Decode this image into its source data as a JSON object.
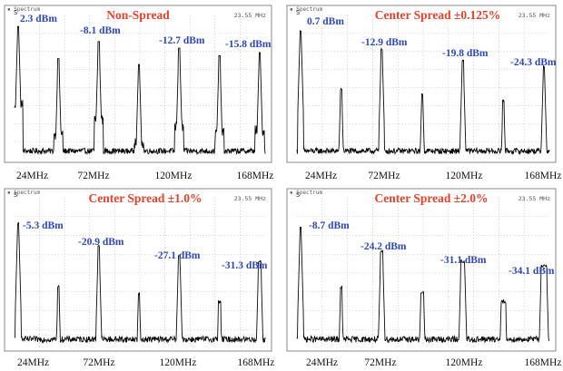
{
  "chart_data": [
    {
      "type": "line",
      "header": "Spectrum",
      "freq_label": "23.55 MHz",
      "title": "Non-Spread",
      "marker": "S",
      "xlim": [
        24,
        168
      ],
      "x_ticks": [
        "24MHz",
        "72MHz",
        "120MHz",
        "168MHz"
      ],
      "harmonics_mhz": [
        24,
        48,
        72,
        96,
        120,
        144,
        168
      ],
      "harmonic_levels_dbm": [
        2.3,
        -20,
        -8.1,
        -24,
        -12.7,
        -18,
        -15.8
      ],
      "spread_fraction": 0,
      "peak_labels": [
        {
          "text": "2.3 dBm",
          "x": 24,
          "level": 2.3
        },
        {
          "text": "-8.1 dBm",
          "x": 72,
          "level": -8.1
        },
        {
          "text": "-12.7 dBm",
          "x": 120,
          "level": -12.7
        },
        {
          "text": "-15.8 dBm",
          "x": 168,
          "level": -15.8
        }
      ]
    },
    {
      "type": "line",
      "header": "Spectrum",
      "freq_label": "23.55 MHz",
      "title": "Center Spread ±0.125%",
      "marker": "S",
      "xlim": [
        24,
        168
      ],
      "x_ticks": [
        "24MHz",
        "72MHz",
        "120MHz",
        "168MHz"
      ],
      "harmonics_mhz": [
        24,
        48,
        72,
        96,
        120,
        144,
        168
      ],
      "harmonic_levels_dbm": [
        0.7,
        -40,
        -12.9,
        -44,
        -19.8,
        -48,
        -24.3
      ],
      "spread_fraction": 0.00125,
      "peak_labels": [
        {
          "text": "0.7 dBm",
          "x": 24,
          "level": 0.7
        },
        {
          "text": "-12.9 dBm",
          "x": 72,
          "level": -12.9
        },
        {
          "text": "-19.8 dBm",
          "x": 120,
          "level": -19.8
        },
        {
          "text": "-24.3 dBm",
          "x": 168,
          "level": -24.3
        }
      ]
    },
    {
      "type": "line",
      "header": "Spectrum",
      "freq_label": "23.55 MHz",
      "title": "Center Spread ±1.0%",
      "marker": "S",
      "xlim": [
        24,
        168
      ],
      "x_ticks": [
        "24MHz",
        "72MHz",
        "120MHz",
        "168MHz"
      ],
      "harmonics_mhz": [
        24,
        48,
        72,
        96,
        120,
        144,
        168
      ],
      "harmonic_levels_dbm": [
        -5.3,
        -48,
        -20.9,
        -52,
        -27.1,
        -58,
        -31.3
      ],
      "spread_fraction": 0.01,
      "peak_labels": [
        {
          "text": "-5.3 dBm",
          "x": 24,
          "level": -5.3
        },
        {
          "text": "-20.9 dBm",
          "x": 72,
          "level": -20.9
        },
        {
          "text": "-27.1 dBm",
          "x": 120,
          "level": -27.1
        },
        {
          "text": "-31.3 dBm",
          "x": 168,
          "level": -31.3
        }
      ]
    },
    {
      "type": "line",
      "header": "Spectrum",
      "freq_label": "23.55 MHz",
      "title": "Center Spread ±2.0%",
      "marker": "S",
      "xlim": [
        24,
        168
      ],
      "x_ticks": [
        "24MHz",
        "72MHz",
        "120MHz",
        "168MHz"
      ],
      "harmonics_mhz": [
        24,
        48,
        72,
        96,
        120,
        144,
        168
      ],
      "harmonic_levels_dbm": [
        -8.7,
        -48,
        -24.2,
        -52,
        -31.1,
        -58,
        -34.1
      ],
      "spread_fraction": 0.02,
      "peak_labels": [
        {
          "text": "-8.7 dBm",
          "x": 24,
          "level": -8.7
        },
        {
          "text": "-24.2 dBm",
          "x": 72,
          "level": -24.2
        },
        {
          "text": "-31.1 dBm",
          "x": 120,
          "level": -31.1
        },
        {
          "text": "-34.1 dBm",
          "x": 168,
          "level": -34.1
        }
      ]
    }
  ],
  "colors": {
    "title": "#e2432d",
    "peak_label": "#2e49b5",
    "trace": "#0a0a0a",
    "grid": "#b8b8b8",
    "frame": "#8a8a8a"
  }
}
